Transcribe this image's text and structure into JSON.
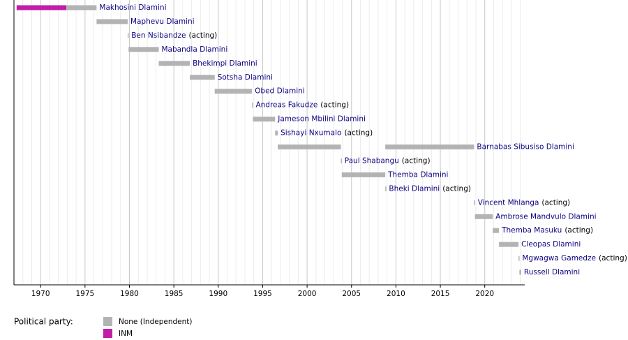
{
  "chart_data": {
    "type": "timeline",
    "xlim": [
      1967,
      2024.5
    ],
    "xticks": [
      1970,
      1975,
      1980,
      1985,
      1990,
      1995,
      2000,
      2005,
      2010,
      2015,
      2020
    ],
    "minor_xticks": [
      1968,
      1969,
      1971,
      1972,
      1973,
      1974,
      1976,
      1977,
      1978,
      1979,
      1981,
      1982,
      1983,
      1984,
      1986,
      1987,
      1988,
      1989,
      1991,
      1992,
      1993,
      1994,
      1996,
      1997,
      1998,
      1999,
      2001,
      2002,
      2003,
      2004,
      2006,
      2007,
      2008,
      2009,
      2011,
      2012,
      2013,
      2014,
      2016,
      2017,
      2018,
      2019,
      2021,
      2022,
      2023,
      2024
    ],
    "grid": true,
    "legend_title": "Political party:",
    "parties": [
      {
        "name": "None (Independent)",
        "color": "#b3b3b3"
      },
      {
        "name": "INM",
        "color": "#c21ca9"
      }
    ],
    "rows": [
      {
        "name": "Makhosini Dlamini",
        "terms": [
          {
            "party": "INM",
            "start": 1967.3,
            "end": 1972.9
          },
          {
            "party": "None (Independent)",
            "start": 1972.9,
            "end": 1976.3
          }
        ]
      },
      {
        "name": "Maphevu Dlamini",
        "terms": [
          {
            "party": "None (Independent)",
            "start": 1976.3,
            "end": 1979.8
          }
        ]
      },
      {
        "name": "Ben Nsibandze",
        "note": "(acting)",
        "terms": [
          {
            "party": "None (Independent)",
            "start": 1979.8,
            "end": 1979.9
          }
        ]
      },
      {
        "name": "Mabandla Dlamini",
        "terms": [
          {
            "party": "None (Independent)",
            "start": 1979.9,
            "end": 1983.3
          }
        ]
      },
      {
        "name": "Bhekimpi Dlamini",
        "terms": [
          {
            "party": "None (Independent)",
            "start": 1983.3,
            "end": 1986.8
          }
        ]
      },
      {
        "name": "Sotsha Dlamini",
        "terms": [
          {
            "party": "None (Independent)",
            "start": 1986.8,
            "end": 1989.6
          }
        ]
      },
      {
        "name": "Obed Dlamini",
        "terms": [
          {
            "party": "None (Independent)",
            "start": 1989.6,
            "end": 1993.8
          }
        ]
      },
      {
        "name": "Andreas Fakudze",
        "note": "(acting)",
        "terms": [
          {
            "party": "None (Independent)",
            "start": 1993.8,
            "end": 1993.9
          }
        ]
      },
      {
        "name": "Jameson Mbilini Dlamini",
        "terms": [
          {
            "party": "None (Independent)",
            "start": 1993.9,
            "end": 1996.4
          }
        ]
      },
      {
        "name": "Sishayi Nxumalo",
        "note": "(acting)",
        "terms": [
          {
            "party": "None (Independent)",
            "start": 1996.4,
            "end": 1996.7
          }
        ]
      },
      {
        "name": "Barnabas Sibusiso Dlamini",
        "terms": [
          {
            "party": "None (Independent)",
            "start": 1996.7,
            "end": 2003.8
          },
          {
            "party": "None (Independent)",
            "start": 2008.8,
            "end": 2018.8
          }
        ]
      },
      {
        "name": "Paul Shabangu",
        "note": "(acting)",
        "terms": [
          {
            "party": "None (Independent)",
            "start": 2003.8,
            "end": 2003.9
          }
        ]
      },
      {
        "name": "Themba Dlamini",
        "terms": [
          {
            "party": "None (Independent)",
            "start": 2003.9,
            "end": 2008.8
          }
        ]
      },
      {
        "name": "Bheki Dlamini",
        "note": "(acting)",
        "terms": [
          {
            "party": "None (Independent)",
            "start": 2008.8,
            "end": 2008.9
          }
        ]
      },
      {
        "name": "Vincent Mhlanga",
        "note": "(acting)",
        "terms": [
          {
            "party": "None (Independent)",
            "start": 2018.8,
            "end": 2018.9
          }
        ]
      },
      {
        "name": "Ambrose Mandvulo Dlamini",
        "terms": [
          {
            "party": "None (Independent)",
            "start": 2018.9,
            "end": 2020.9
          }
        ]
      },
      {
        "name": "Themba Masuku",
        "note": "(acting)",
        "terms": [
          {
            "party": "None (Independent)",
            "start": 2020.9,
            "end": 2021.6
          }
        ]
      },
      {
        "name": "Cleopas Dlamini",
        "terms": [
          {
            "party": "None (Independent)",
            "start": 2021.6,
            "end": 2023.8
          }
        ]
      },
      {
        "name": "Mgwagwa Gamedze",
        "note": "(acting)",
        "terms": [
          {
            "party": "None (Independent)",
            "start": 2023.8,
            "end": 2023.9
          }
        ]
      },
      {
        "name": "Russell Dlamini",
        "terms": [
          {
            "party": "None (Independent)",
            "start": 2023.9,
            "end": 2024.1
          }
        ]
      }
    ]
  }
}
